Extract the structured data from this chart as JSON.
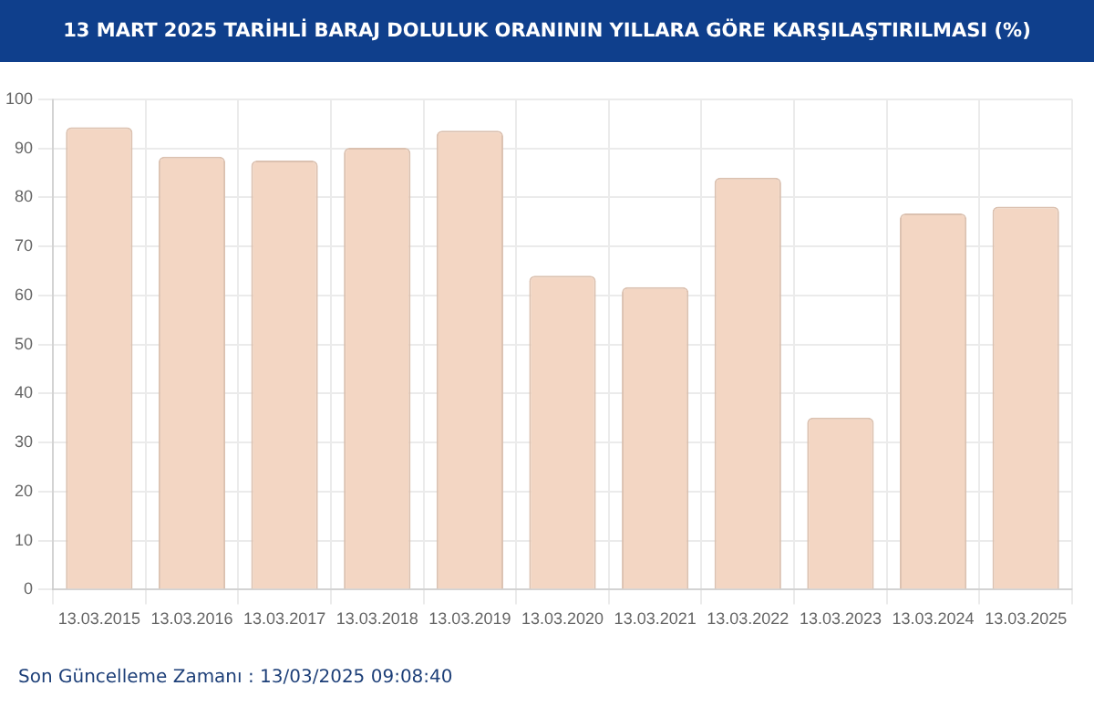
{
  "chart_data": {
    "type": "bar",
    "title": "13 MART 2025 TARİHLİ BARAJ DOLULUK ORANININ YILLARA GÖRE KARŞILAŞTIRILMASI (%)",
    "categories": [
      "13.03.2015",
      "13.03.2016",
      "13.03.2017",
      "13.03.2018",
      "13.03.2019",
      "13.03.2020",
      "13.03.2021",
      "13.03.2022",
      "13.03.2023",
      "13.03.2024",
      "13.03.2025"
    ],
    "values": [
      94.3,
      88.3,
      87.5,
      90.1,
      93.6,
      64.0,
      61.7,
      84.0,
      35.1,
      76.7,
      78.1
    ],
    "color": "#f3d6c3",
    "ylim": [
      0,
      100
    ],
    "yticks": [
      0,
      10,
      20,
      30,
      40,
      50,
      60,
      70,
      80,
      90,
      100
    ],
    "grid": true,
    "annotations": [
      "Son Güncelleme Zamanı : 13/03/2025 09:08:40"
    ]
  }
}
